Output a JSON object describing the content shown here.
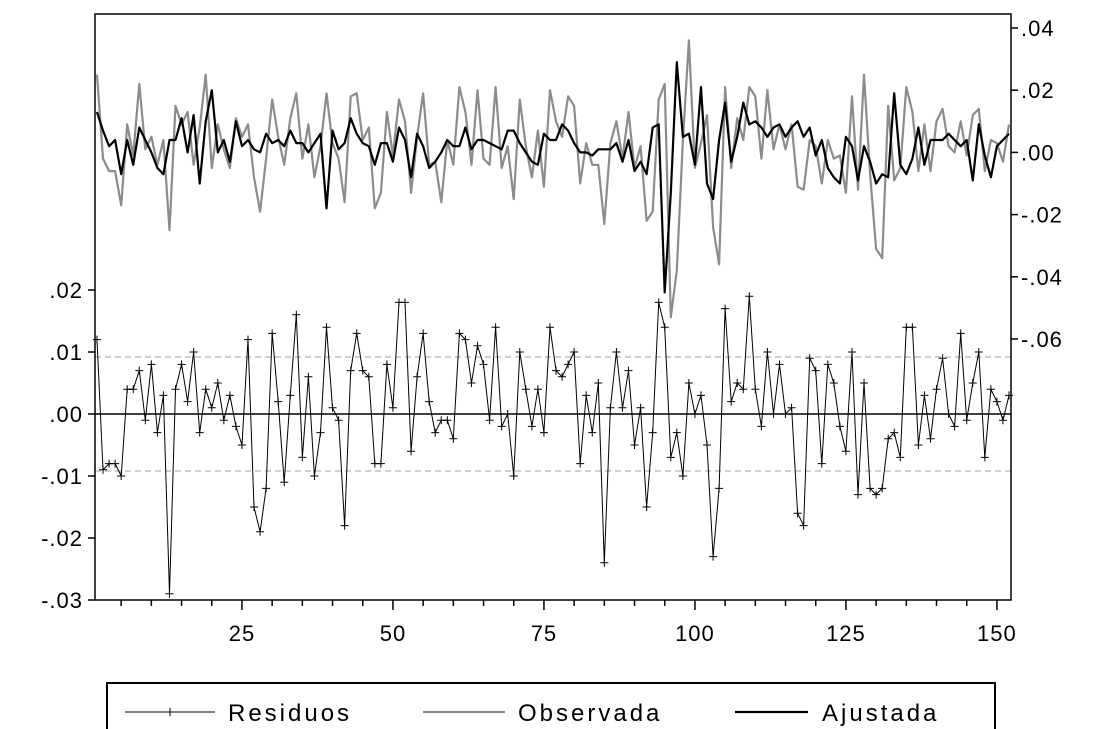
{
  "chart_data": {
    "type": "line",
    "x": {
      "range": [
        1,
        152
      ],
      "ticks": [
        25,
        50,
        75,
        100,
        125,
        150
      ],
      "tick_labels": [
        "25",
        "50",
        "75",
        "100",
        "125",
        "150"
      ]
    },
    "y_left": {
      "range": [
        -0.03,
        0.03
      ],
      "ticks": [
        -0.03,
        -0.02,
        -0.01,
        0.0,
        0.01,
        0.02
      ],
      "tick_labels": [
        "-.03",
        "-.02",
        "-.01",
        ".00",
        ".01",
        ".02"
      ]
    },
    "y_right": {
      "range": [
        -0.06,
        0.04
      ],
      "ticks": [
        -0.06,
        -0.04,
        -0.02,
        0.0,
        0.02,
        0.04
      ],
      "tick_labels": [
        "-.06",
        "-.04",
        "-.02",
        ".00",
        ".02",
        ".04"
      ]
    },
    "residual_band": 0.0092,
    "legend_placement": "bottom",
    "colors": {
      "residuos": "#000000",
      "observada": "#8c8c8c",
      "ajustada": "#000000",
      "band": "#a0a0a0"
    },
    "series": [
      {
        "name": "Residuos",
        "axis": "left",
        "marker": "plus",
        "values": [
          0.012,
          -0.009,
          -0.008,
          -0.008,
          -0.01,
          0.004,
          0.004,
          0.007,
          -0.001,
          0.008,
          -0.003,
          0.003,
          -0.029,
          0.004,
          0.008,
          0.002,
          0.01,
          -0.003,
          0.004,
          0.001,
          0.005,
          -0.001,
          0.003,
          -0.002,
          -0.005,
          0.012,
          -0.015,
          -0.019,
          -0.012,
          0.013,
          0.002,
          -0.011,
          0.003,
          0.016,
          -0.007,
          0.006,
          -0.01,
          -0.003,
          0.014,
          0.001,
          -0.001,
          -0.018,
          0.007,
          0.013,
          0.007,
          0.006,
          -0.008,
          -0.008,
          0.008,
          0.001,
          0.018,
          0.018,
          -0.006,
          0.006,
          0.013,
          0.002,
          -0.003,
          -0.001,
          -0.001,
          -0.004,
          0.013,
          0.012,
          0.005,
          0.011,
          0.008,
          -0.001,
          0.014,
          -0.002,
          0.0,
          -0.01,
          0.01,
          0.004,
          -0.002,
          0.004,
          -0.003,
          0.014,
          0.007,
          0.006,
          0.008,
          0.01,
          -0.008,
          0.003,
          -0.003,
          0.005,
          -0.024,
          0.001,
          0.01,
          0.001,
          0.007,
          -0.005,
          0.001,
          -0.015,
          -0.003,
          0.018,
          0.014,
          -0.007,
          -0.003,
          -0.01,
          0.005,
          0.0,
          0.003,
          -0.005,
          -0.023,
          -0.012,
          0.017,
          0.002,
          0.005,
          0.004,
          0.019,
          0.004,
          -0.002,
          0.01,
          0.0,
          0.008,
          0.0,
          0.001,
          -0.016,
          -0.018,
          0.009,
          0.007,
          -0.008,
          0.008,
          0.005,
          -0.002,
          -0.006,
          0.01,
          -0.013,
          0.005,
          -0.012,
          -0.013,
          -0.012,
          -0.004,
          -0.003,
          -0.007,
          0.014,
          0.014,
          -0.005,
          0.003,
          -0.004,
          0.004,
          0.009,
          0.0,
          -0.002,
          0.013,
          -0.001,
          0.005,
          0.01,
          -0.007,
          0.004,
          0.002,
          -0.001,
          0.003
        ]
      },
      {
        "name": "Observada",
        "axis": "right",
        "values": [
          0.025,
          -0.002,
          -0.006,
          -0.006,
          -0.017,
          0.009,
          -0.001,
          0.022,
          0.001,
          0.005,
          -0.004,
          0.004,
          -0.025,
          0.015,
          0.009,
          0.013,
          -0.004,
          0.008,
          0.025,
          -0.005,
          0.009,
          0.001,
          -0.005,
          0.011,
          0.005,
          0.009,
          -0.008,
          -0.019,
          -0.002,
          0.017,
          0.005,
          -0.004,
          0.011,
          0.019,
          -0.002,
          0.009,
          -0.008,
          0.002,
          0.019,
          0.003,
          -0.002,
          -0.016,
          0.018,
          0.019,
          0.004,
          0.008,
          -0.018,
          -0.013,
          0.013,
          -0.001,
          0.017,
          0.01,
          -0.013,
          0.005,
          0.019,
          -0.004,
          -0.003,
          -0.016,
          0.004,
          -0.004,
          0.021,
          0.013,
          -0.004,
          0.02,
          -0.002,
          -0.004,
          0.021,
          -0.005,
          0.002,
          -0.015,
          0.017,
          0.002,
          -0.008,
          0.007,
          -0.011,
          0.02,
          0.01,
          0.005,
          0.018,
          0.015,
          -0.01,
          0.003,
          -0.004,
          -0.004,
          -0.023,
          0.003,
          0.01,
          -0.002,
          0.013,
          -0.005,
          0.002,
          -0.022,
          -0.019,
          0.017,
          0.022,
          -0.053,
          -0.038,
          0.004,
          0.036,
          -0.005,
          0.003,
          0.012,
          -0.024,
          -0.036,
          0.021,
          -0.005,
          0.011,
          0.004,
          0.021,
          0.018,
          -0.002,
          0.02,
          0.001,
          0.009,
          0.001,
          0.009,
          -0.011,
          -0.012,
          0.004,
          0.002,
          -0.01,
          0.004,
          -0.002,
          -0.001,
          -0.013,
          0.018,
          -0.012,
          0.025,
          -0.007,
          -0.031,
          -0.034,
          0.015,
          -0.009,
          -0.005,
          0.021,
          0.013,
          -0.006,
          0.009,
          -0.006,
          0.01,
          0.014,
          0.002,
          0.0,
          0.01,
          -0.001,
          0.012,
          0.014,
          -0.006,
          0.004,
          0.003,
          -0.003,
          0.009
        ]
      },
      {
        "name": "Ajustada",
        "axis": "right",
        "values": [
          0.013,
          0.007,
          0.002,
          0.004,
          -0.007,
          0.004,
          -0.004,
          0.008,
          0.004,
          0.0,
          -0.005,
          -0.007,
          0.004,
          0.004,
          0.011,
          0.0,
          0.012,
          -0.01,
          0.01,
          0.02,
          0.0,
          0.004,
          -0.003,
          0.01,
          0.002,
          0.004,
          0.001,
          0.0,
          0.006,
          0.003,
          0.004,
          0.002,
          0.007,
          0.003,
          0.003,
          0.0,
          0.003,
          0.006,
          -0.018,
          0.007,
          0.001,
          0.003,
          0.011,
          0.006,
          0.003,
          0.002,
          -0.004,
          0.003,
          0.003,
          -0.003,
          0.008,
          0.004,
          -0.008,
          0.006,
          0.002,
          -0.005,
          -0.003,
          0.0,
          0.004,
          0.002,
          0.002,
          0.008,
          0.001,
          0.004,
          0.004,
          0.003,
          0.002,
          0.001,
          0.007,
          0.007,
          0.003,
          0.0,
          -0.003,
          -0.004,
          0.006,
          0.004,
          0.004,
          0.009,
          0.007,
          0.003,
          0.0,
          0.0,
          -0.001,
          0.001,
          0.001,
          0.001,
          0.003,
          -0.003,
          0.004,
          -0.006,
          -0.003,
          -0.007,
          0.008,
          0.009,
          -0.045,
          -0.013,
          0.029,
          0.005,
          0.006,
          -0.004,
          0.021,
          -0.01,
          -0.015,
          0.004,
          0.016,
          -0.003,
          0.005,
          0.016,
          0.009,
          0.01,
          0.008,
          0.005,
          0.008,
          0.009,
          0.005,
          0.008,
          0.01,
          0.005,
          0.008,
          -0.001,
          0.004,
          -0.005,
          -0.008,
          -0.01,
          0.005,
          0.002,
          -0.009,
          0.002,
          -0.003,
          -0.01,
          -0.007,
          -0.008,
          0.019,
          -0.004,
          -0.007,
          -0.002,
          0.008,
          -0.004,
          0.004,
          0.004,
          0.004,
          0.006,
          0.004,
          0.002,
          0.004,
          -0.009,
          0.009,
          -0.001,
          -0.008,
          0.002,
          0.004,
          0.006
        ]
      }
    ]
  }
}
